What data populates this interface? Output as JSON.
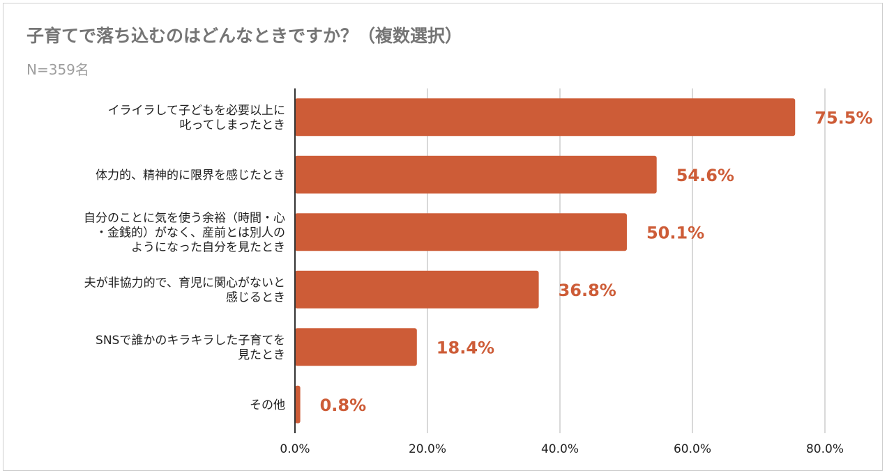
{
  "chart": {
    "title": "子育てで落ち込むのはどんなときですか？（複数選択）",
    "subtitle": "N=359名"
  },
  "chart_data": {
    "type": "bar",
    "orientation": "horizontal",
    "categories": [
      [
        "イライラして子どもを必要以上に",
        "叱ってしまったとき"
      ],
      [
        "体力的、精神的に限界を感じたとき"
      ],
      [
        "自分のことに気を使う余裕（時間・心",
        "・金銭的）がなく、産前とは別人の",
        "ようになった自分を見たとき"
      ],
      [
        "夫が非協力的で、育児に関心がないと",
        "感じるとき"
      ],
      [
        "SNSで誰かのキラキラした子育てを",
        "見たとき"
      ],
      [
        "その他"
      ]
    ],
    "values": [
      75.5,
      54.6,
      50.1,
      36.8,
      18.4,
      0.8
    ],
    "data_labels": [
      "75.5%",
      "54.6%",
      "50.1%",
      "36.8%",
      "18.4%",
      "0.8%"
    ],
    "xlim": [
      0,
      80
    ],
    "x_ticks": [
      0,
      20,
      40,
      60,
      80
    ],
    "x_tick_labels": [
      "0.0%",
      "20.0%",
      "40.0%",
      "60.0%",
      "80.0%"
    ],
    "grid": true,
    "legend": "none",
    "bar_color": "#cd5c37",
    "grid_color": "#d9d9d9",
    "axis_color": "#333333"
  }
}
